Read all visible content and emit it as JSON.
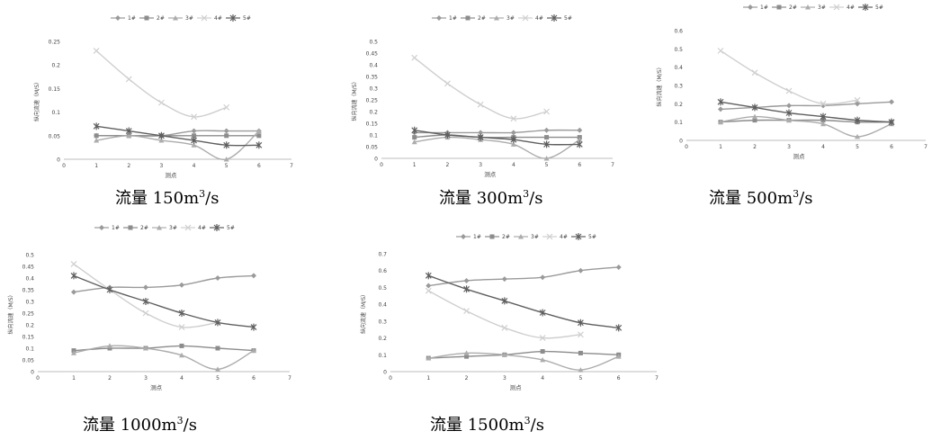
{
  "colors": {
    "1#": "#9a9a9a",
    "2#": "#8c8c8c",
    "3#": "#acacac",
    "4#": "#cfcfcf",
    "5#": "#5f5f5f",
    "axis": "#bdbdbd",
    "text": "#444444"
  },
  "chart_data": [
    {
      "type": "line",
      "title": "",
      "caption": {
        "prefix": "流量 ",
        "value": "150m",
        "sup": "3",
        "suffix": "/s"
      },
      "xlabel": "测点",
      "ylabel": "纵向流速（M/S）",
      "xlim": [
        0,
        7
      ],
      "ylim": [
        0,
        0.25
      ],
      "xticks": [
        "0",
        "1",
        "2",
        "3",
        "4",
        "5",
        "6",
        "7"
      ],
      "yticks": [
        "0",
        "0.05",
        "0.1",
        "0.15",
        "0.2",
        "0.25"
      ],
      "legend": "top",
      "grid": false,
      "series": [
        {
          "name": "1#",
          "marker": "diamond",
          "x": [
            1,
            2,
            3,
            4,
            5,
            6
          ],
          "y": [
            0.05,
            0.05,
            0.05,
            0.06,
            0.06,
            0.06
          ]
        },
        {
          "name": "2#",
          "marker": "square",
          "x": [
            1,
            2,
            3,
            4,
            5,
            6
          ],
          "y": [
            0.05,
            0.05,
            0.05,
            0.05,
            0.05,
            0.05
          ]
        },
        {
          "name": "3#",
          "marker": "triangle",
          "x": [
            1,
            2,
            3,
            4,
            5,
            6
          ],
          "y": [
            0.04,
            0.05,
            0.04,
            0.03,
            0.0,
            0.06
          ]
        },
        {
          "name": "4#",
          "marker": "x",
          "x": [
            1,
            2,
            3,
            4,
            5
          ],
          "y": [
            0.23,
            0.17,
            0.12,
            0.09,
            0.11
          ]
        },
        {
          "name": "5#",
          "marker": "star",
          "x": [
            1,
            2,
            3,
            4,
            5,
            6
          ],
          "y": [
            0.07,
            0.06,
            0.05,
            0.04,
            0.03,
            0.03
          ]
        }
      ]
    },
    {
      "type": "line",
      "title": "",
      "caption": {
        "prefix": "流量 ",
        "value": "300m",
        "sup": "3",
        "suffix": "/s"
      },
      "xlabel": "测点",
      "ylabel": "纵向流速（M/S）",
      "xlim": [
        0,
        7
      ],
      "ylim": [
        0,
        0.5
      ],
      "xticks": [
        "0",
        "1",
        "2",
        "3",
        "4",
        "5",
        "6",
        "7"
      ],
      "yticks": [
        "0",
        "0.05",
        "0.1",
        "0.15",
        "0.2",
        "0.25",
        "0.3",
        "0.35",
        "0.4",
        "0.45",
        "0.5"
      ],
      "legend": "top",
      "grid": false,
      "series": [
        {
          "name": "1#",
          "marker": "diamond",
          "x": [
            1,
            2,
            3,
            4,
            5,
            6
          ],
          "y": [
            0.11,
            0.11,
            0.11,
            0.11,
            0.12,
            0.12
          ]
        },
        {
          "name": "2#",
          "marker": "square",
          "x": [
            1,
            2,
            3,
            4,
            5,
            6
          ],
          "y": [
            0.09,
            0.1,
            0.09,
            0.09,
            0.09,
            0.09
          ]
        },
        {
          "name": "3#",
          "marker": "triangle",
          "x": [
            1,
            2,
            3,
            4,
            5,
            6
          ],
          "y": [
            0.07,
            0.09,
            0.08,
            0.06,
            0.0,
            0.08
          ]
        },
        {
          "name": "4#",
          "marker": "x",
          "x": [
            1,
            2,
            3,
            4,
            5
          ],
          "y": [
            0.43,
            0.32,
            0.23,
            0.17,
            0.2
          ]
        },
        {
          "name": "5#",
          "marker": "star",
          "x": [
            1,
            2,
            3,
            4,
            5,
            6
          ],
          "y": [
            0.12,
            0.1,
            0.09,
            0.08,
            0.06,
            0.06
          ]
        }
      ]
    },
    {
      "type": "line",
      "title": "",
      "caption": {
        "prefix": "流量 ",
        "value": "500m",
        "sup": "3",
        "suffix": "/s"
      },
      "xlabel": "测点",
      "ylabel": "纵向流速（M/S）",
      "xlim": [
        0,
        7
      ],
      "ylim": [
        0,
        0.6
      ],
      "xticks": [
        "0",
        "1",
        "2",
        "3",
        "4",
        "5",
        "6",
        "7"
      ],
      "yticks": [
        "0",
        "0.1",
        "0.2",
        "0.3",
        "0.4",
        "0.5",
        "0.6"
      ],
      "legend": "top",
      "grid": false,
      "series": [
        {
          "name": "1#",
          "marker": "diamond",
          "x": [
            1,
            2,
            3,
            4,
            5,
            6
          ],
          "y": [
            0.17,
            0.18,
            0.19,
            0.19,
            0.2,
            0.21
          ]
        },
        {
          "name": "2#",
          "marker": "square",
          "x": [
            1,
            2,
            3,
            4,
            5,
            6
          ],
          "y": [
            0.1,
            0.11,
            0.11,
            0.11,
            0.1,
            0.1
          ]
        },
        {
          "name": "3#",
          "marker": "triangle",
          "x": [
            1,
            2,
            3,
            4,
            5,
            6
          ],
          "y": [
            0.1,
            0.13,
            0.11,
            0.09,
            0.02,
            0.09
          ]
        },
        {
          "name": "4#",
          "marker": "x",
          "x": [
            1,
            2,
            3,
            4,
            5
          ],
          "y": [
            0.49,
            0.37,
            0.27,
            0.2,
            0.22
          ]
        },
        {
          "name": "5#",
          "marker": "star",
          "x": [
            1,
            2,
            3,
            4,
            5,
            6
          ],
          "y": [
            0.21,
            0.18,
            0.15,
            0.13,
            0.11,
            0.1
          ]
        }
      ]
    },
    {
      "type": "line",
      "title": "",
      "caption": {
        "prefix": "流量 ",
        "value": "1000m",
        "sup": "3",
        "suffix": "/s"
      },
      "xlabel": "测点",
      "ylabel": "纵向流速（M/S）",
      "xlim": [
        0,
        7
      ],
      "ylim": [
        0,
        0.5
      ],
      "xticks": [
        "0",
        "1",
        "2",
        "3",
        "4",
        "5",
        "6",
        "7"
      ],
      "yticks": [
        "0",
        "0.05",
        "0.1",
        "0.15",
        "0.2",
        "0.25",
        "0.3",
        "0.35",
        "0.4",
        "0.45",
        "0.5"
      ],
      "legend": "top",
      "grid": false,
      "series": [
        {
          "name": "1#",
          "marker": "diamond",
          "x": [
            1,
            2,
            3,
            4,
            5,
            6
          ],
          "y": [
            0.34,
            0.36,
            0.36,
            0.37,
            0.4,
            0.41
          ]
        },
        {
          "name": "2#",
          "marker": "square",
          "x": [
            1,
            2,
            3,
            4,
            5,
            6
          ],
          "y": [
            0.09,
            0.1,
            0.1,
            0.11,
            0.1,
            0.09
          ]
        },
        {
          "name": "3#",
          "marker": "triangle",
          "x": [
            1,
            2,
            3,
            4,
            5,
            6
          ],
          "y": [
            0.08,
            0.11,
            0.1,
            0.07,
            0.01,
            0.09
          ]
        },
        {
          "name": "4#",
          "marker": "x",
          "x": [
            1,
            2,
            3,
            4,
            5
          ],
          "y": [
            0.46,
            0.35,
            0.25,
            0.19,
            0.21
          ]
        },
        {
          "name": "5#",
          "marker": "star",
          "x": [
            1,
            2,
            3,
            4,
            5,
            6
          ],
          "y": [
            0.41,
            0.35,
            0.3,
            0.25,
            0.21,
            0.19
          ]
        }
      ]
    },
    {
      "type": "line",
      "title": "",
      "caption": {
        "prefix": "流量 ",
        "value": "1500m",
        "sup": "3",
        "suffix": "/s"
      },
      "xlabel": "测点",
      "ylabel": "纵向流速（M/S）",
      "xlim": [
        0,
        7
      ],
      "ylim": [
        0,
        0.7
      ],
      "xticks": [
        "0",
        "1",
        "2",
        "3",
        "4",
        "5",
        "6",
        "7"
      ],
      "yticks": [
        "0",
        "0.1",
        "0.2",
        "0.3",
        "0.4",
        "0.5",
        "0.6",
        "0.7"
      ],
      "legend": "top",
      "grid": false,
      "series": [
        {
          "name": "1#",
          "marker": "diamond",
          "x": [
            1,
            2,
            3,
            4,
            5,
            6
          ],
          "y": [
            0.51,
            0.54,
            0.55,
            0.56,
            0.6,
            0.62
          ]
        },
        {
          "name": "2#",
          "marker": "square",
          "x": [
            1,
            2,
            3,
            4,
            5,
            6
          ],
          "y": [
            0.08,
            0.09,
            0.1,
            0.12,
            0.11,
            0.1
          ]
        },
        {
          "name": "3#",
          "marker": "triangle",
          "x": [
            1,
            2,
            3,
            4,
            5,
            6
          ],
          "y": [
            0.08,
            0.11,
            0.1,
            0.07,
            0.01,
            0.09
          ]
        },
        {
          "name": "4#",
          "marker": "x",
          "x": [
            1,
            2,
            3,
            4,
            5
          ],
          "y": [
            0.48,
            0.36,
            0.26,
            0.2,
            0.22
          ]
        },
        {
          "name": "5#",
          "marker": "star",
          "x": [
            1,
            2,
            3,
            4,
            5,
            6
          ],
          "y": [
            0.57,
            0.49,
            0.42,
            0.35,
            0.29,
            0.26
          ]
        }
      ]
    }
  ]
}
